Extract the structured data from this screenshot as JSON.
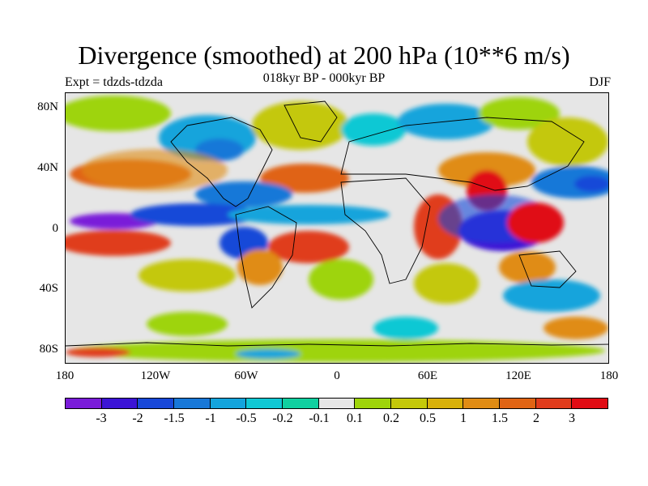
{
  "title": "Divergence (smoothed) at 200 hPa (10**6 m/s)",
  "subtitle": "018kyr BP - 000kyr BP",
  "experiment": "Expt = tdzds-tdzda",
  "season": "DJF",
  "map": {
    "lat_labels": [
      "80N",
      "40N",
      "0",
      "40S",
      "80S"
    ],
    "lon_labels": [
      "180",
      "120W",
      "60W",
      "0",
      "60E",
      "120E",
      "180"
    ],
    "palette": {
      "deep_purple": "#7a1cd9",
      "purple": "#3c14d6",
      "blue": "#1848d8",
      "mid_blue": "#1878d8",
      "light_blue": "#14a4dc",
      "cyan": "#10c8d4",
      "teal": "#10d0a0",
      "neutral": "#e6e6e6",
      "yellow_green": "#9ed40a",
      "olive": "#c4c80a",
      "gold": "#d8b00a",
      "orange": "#e08c14",
      "dark_orange": "#e06414",
      "red_orange": "#e03c1c",
      "red": "#e00c14",
      "coast": "#000000"
    }
  },
  "colorbar": {
    "colors": [
      "#7a1cd9",
      "#3c14d6",
      "#1848d8",
      "#1878d8",
      "#14a4dc",
      "#10c8d4",
      "#10d0a0",
      "#e6e6e6",
      "#9ed40a",
      "#c4c80a",
      "#d8b00a",
      "#e08c14",
      "#e06414",
      "#e03c1c",
      "#e00c14"
    ],
    "labels": [
      "-3",
      "-2",
      "-1.5",
      "-1",
      "-0.5",
      "-0.2",
      "-0.1",
      "0.1",
      "0.2",
      "0.5",
      "1",
      "1.5",
      "2",
      "3"
    ]
  }
}
